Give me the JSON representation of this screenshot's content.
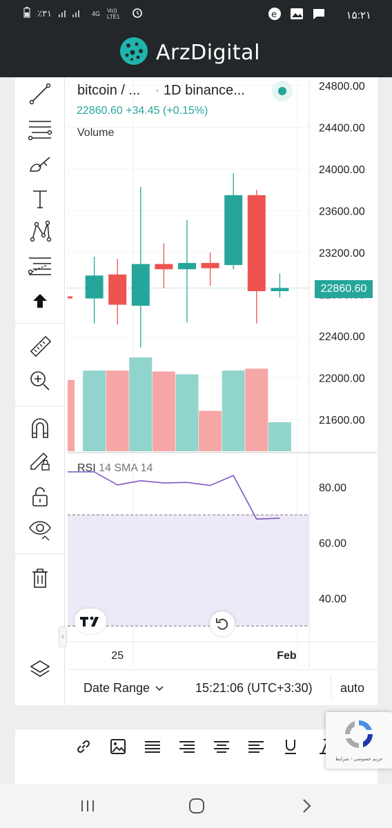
{
  "status_bar": {
    "left_text": "٪۳۱",
    "network": "4G",
    "volte": "Vo)) LTE1",
    "time": "۱۵:۲۱"
  },
  "brand": {
    "name": "ArzDigital"
  },
  "toolbar": {
    "tools": [
      "trendline-icon",
      "fib-lines-icon",
      "brush-icon",
      "text-icon",
      "pattern-icon",
      "forecast-icon",
      "arrow-up-icon",
      "ruler-icon",
      "zoom-in-icon",
      "magnet-icon",
      "lock-drawing-icon",
      "unlock-icon",
      "eye-icon",
      "trash-icon",
      "layers-icon"
    ]
  },
  "chart_header": {
    "symbol": "bitcoin / ...",
    "interval": "1D",
    "exchange": "binance...",
    "price": "22860.60",
    "change": "+34.45 (+0.15%)",
    "volume_label": "Volume",
    "current_price_badge": "22860.60",
    "hidden_tick": "22800.00",
    "rsi_label": "RSI",
    "rsi_params": "14 SMA 14",
    "tv_logo": "TV"
  },
  "chart_data": {
    "type": "candlestick",
    "price_axis_ticks": [
      "24800.00",
      "24400.00",
      "24000.00",
      "23600.00",
      "23200.00",
      "22400.00",
      "22000.00",
      "21600.00"
    ],
    "price_tick_values": [
      24800,
      24400,
      24000,
      23600,
      23200,
      22400,
      22000,
      21600
    ],
    "rsi_axis_ticks": [
      "80.00",
      "60.00",
      "40.00"
    ],
    "rsi_tick_values": [
      80,
      60,
      40
    ],
    "x_ticks": [
      {
        "label": "25",
        "candle": 2
      },
      {
        "label": "Feb",
        "candle": 9.3
      }
    ],
    "candles": [
      {
        "o": 22780,
        "h": 22780,
        "l": 22760,
        "c": 22760,
        "up": false
      },
      {
        "o": 22760,
        "h": 23160,
        "l": 22520,
        "c": 22980,
        "up": true
      },
      {
        "o": 22990,
        "h": 23140,
        "l": 22510,
        "c": 22700,
        "up": false
      },
      {
        "o": 22690,
        "h": 23830,
        "l": 22290,
        "c": 23090,
        "up": true
      },
      {
        "o": 23090,
        "h": 23290,
        "l": 22860,
        "c": 23040,
        "up": false
      },
      {
        "o": 23040,
        "h": 23510,
        "l": 22530,
        "c": 23100,
        "up": true
      },
      {
        "o": 23100,
        "h": 23200,
        "l": 22880,
        "c": 23050,
        "up": false
      },
      {
        "o": 23080,
        "h": 23960,
        "l": 23040,
        "c": 23750,
        "up": true
      },
      {
        "o": 23750,
        "h": 23800,
        "l": 22520,
        "c": 22830,
        "up": false
      },
      {
        "o": 22830,
        "h": 23000,
        "l": 22770,
        "c": 22860,
        "up": true
      }
    ],
    "volume_levels": [
      0.76,
      0.86,
      0.86,
      1.0,
      0.85,
      0.82,
      0.43,
      0.86,
      0.88,
      0.31
    ],
    "rsi_values": [
      85.5,
      85.5,
      80.8,
      82.3,
      81.5,
      81.7,
      80.6,
      84.2,
      68.5,
      68.8
    ],
    "rsi_upper_band": 70,
    "rsi_lower_band": 30,
    "colors": {
      "up": "#26a69a",
      "down": "#ef5350",
      "up_volume": "#91d4cc",
      "down_volume": "#f6a6a4",
      "rsi": "#7e57c2",
      "rsi_band": "#ede9f7"
    }
  },
  "footer": {
    "date_range": "Date Range",
    "time": "15:21:06 (UTC+3:30)",
    "scale": "auto"
  },
  "editor_tools": [
    "link-icon",
    "image-icon",
    "align-justify-icon",
    "align-right-icon",
    "align-center-icon",
    "align-left-icon",
    "underline-icon",
    "italic-icon"
  ],
  "captcha": {
    "label": "حریم خصوصی - شرایط"
  }
}
